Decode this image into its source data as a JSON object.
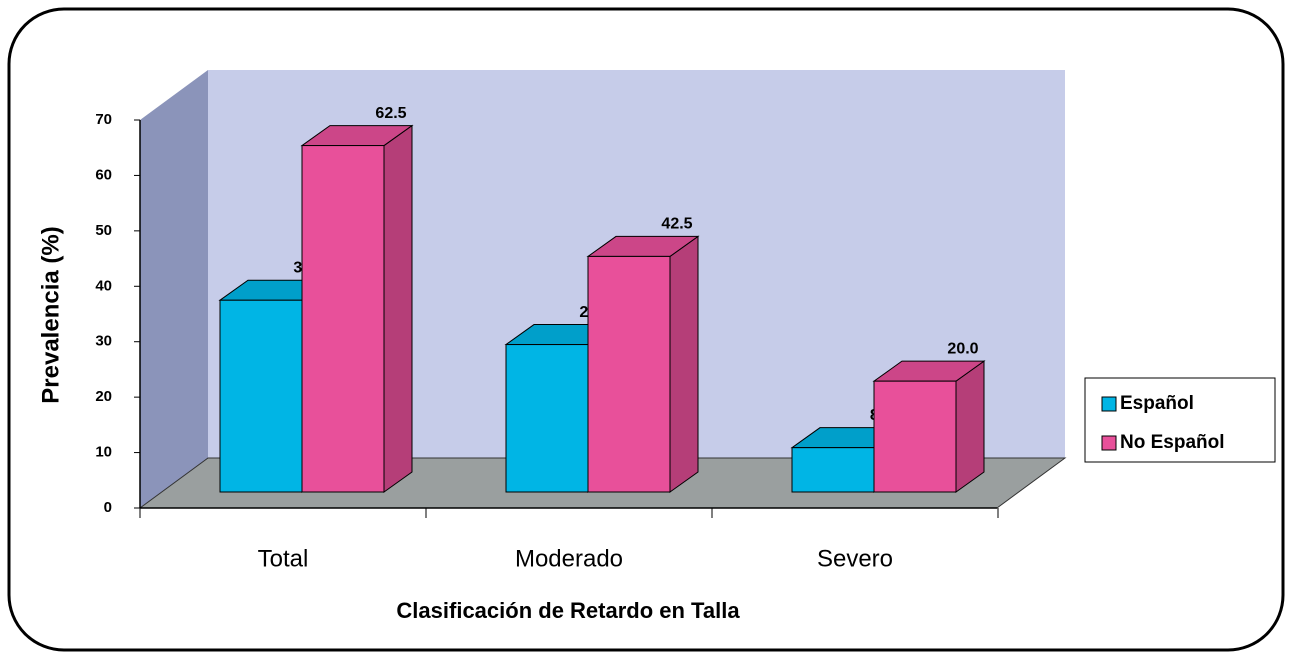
{
  "chart_data": {
    "type": "bar3d",
    "categories": [
      "Total",
      "Moderado",
      "Severo"
    ],
    "series": [
      {
        "name": "Español",
        "color": "#00b5e5",
        "values": [
          34.6,
          26.6,
          8.0
        ],
        "value_labels": [
          "34.6",
          "26.6",
          "8.0"
        ]
      },
      {
        "name": "No Español",
        "color": "#e8509a",
        "values": [
          62.5,
          42.5,
          20.0
        ],
        "value_labels": [
          "62.5",
          "42.5",
          "20.0"
        ]
      }
    ],
    "ylabel": "Prevalencia (%)",
    "xlabel": "Clasificación de Retardo en Talla",
    "ylim": [
      0,
      70
    ],
    "yticks": [
      0,
      10,
      20,
      30,
      40,
      50,
      60,
      70
    ],
    "legend": "right"
  }
}
